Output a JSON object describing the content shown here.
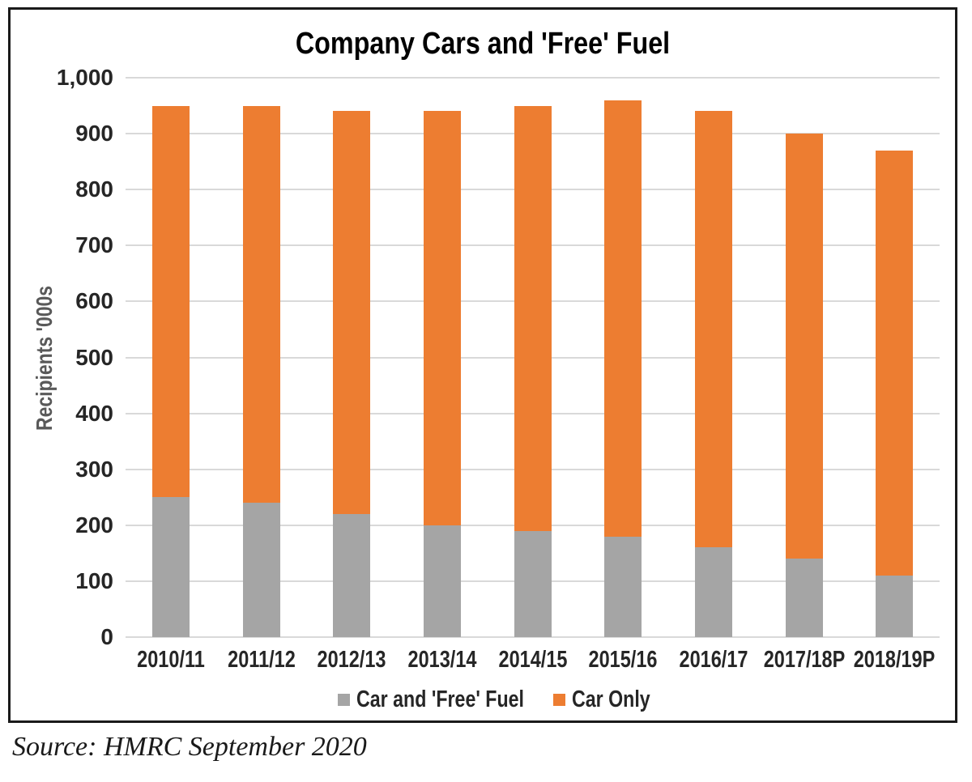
{
  "chart_data": {
    "type": "bar",
    "stacked": true,
    "title": "Company Cars and 'Free' Fuel",
    "ylabel": "Recipients '000s",
    "xlabel": "",
    "ylim": [
      0,
      1000
    ],
    "ytick_step": 100,
    "yticks": [
      "0",
      "100",
      "200",
      "300",
      "400",
      "500",
      "600",
      "700",
      "800",
      "900",
      "1,000"
    ],
    "categories": [
      "2010/11",
      "2011/12",
      "2012/13",
      "2013/14",
      "2014/15",
      "2015/16",
      "2016/17",
      "2017/18P",
      "2018/19P"
    ],
    "series": [
      {
        "name": "Car and 'Free' Fuel",
        "color": "#A5A5A5",
        "values": [
          250,
          240,
          220,
          200,
          190,
          180,
          160,
          140,
          110
        ]
      },
      {
        "name": "Car Only",
        "color": "#ED7D31",
        "values": [
          700,
          710,
          720,
          740,
          760,
          780,
          780,
          760,
          760
        ]
      }
    ],
    "totals": [
      950,
      950,
      940,
      940,
      950,
      960,
      940,
      900,
      870
    ],
    "legend_position": "bottom",
    "grid": true,
    "gridline_color": "#D9D9D9"
  },
  "source_note": "Source: HMRC September 2020"
}
